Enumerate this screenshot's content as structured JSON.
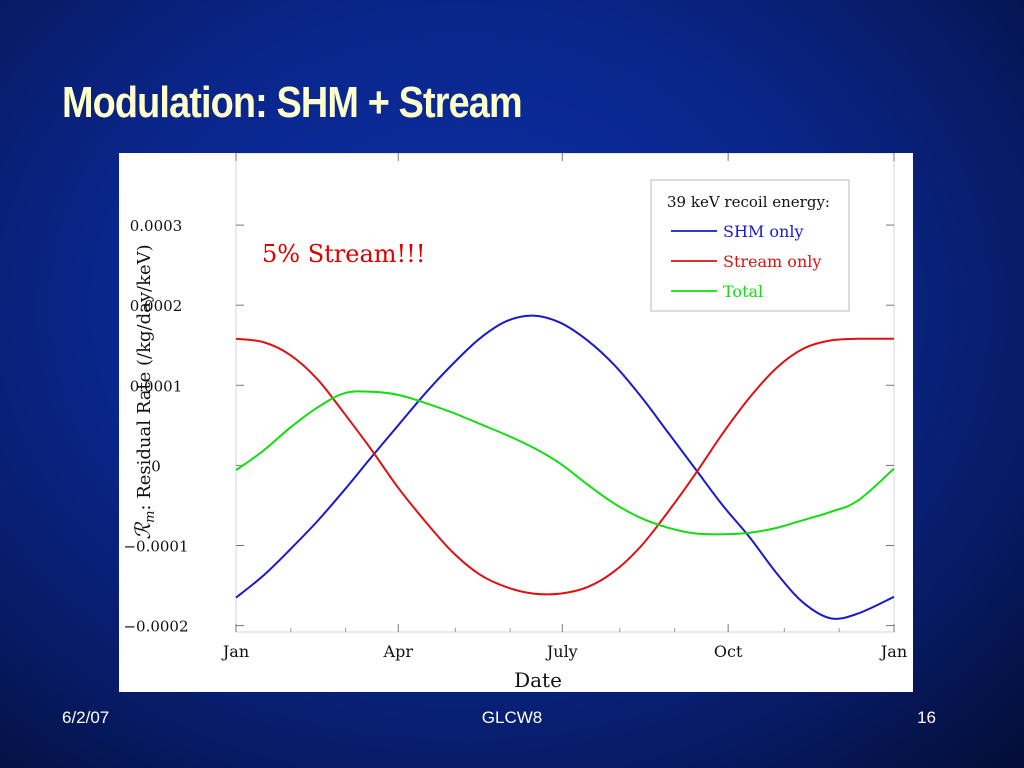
{
  "slide": {
    "title": "Modulation: SHM + Stream",
    "footer_date": "6/2/07",
    "footer_center": "GLCW8",
    "footer_page": "16"
  },
  "chart_data": {
    "type": "line",
    "xlabel": "Date",
    "ylabel_symbol": "ℛ",
    "ylabel_sub": "m",
    "ylabel_text": ": Residual Rate (/kg/day/keV)",
    "x_ticks": [
      "Jan",
      "Apr",
      "July",
      "Oct",
      "Jan"
    ],
    "x_tick_days": [
      0,
      90,
      181,
      273,
      365
    ],
    "xlim": [
      0,
      365
    ],
    "y_ticks": [
      {
        "value": 0.0003,
        "label": "0.0003"
      },
      {
        "value": 0.0002,
        "label": "0.0002"
      },
      {
        "value": 0.0001,
        "label": "0.0001"
      },
      {
        "value": 0,
        "label": "0"
      },
      {
        "value": -0.0001,
        "label": "−0.0001"
      },
      {
        "value": -0.0002,
        "label": "−0.0002"
      }
    ],
    "ylim": [
      -0.000208,
      0.00039
    ],
    "annotation": {
      "text": "5% Stream!!!",
      "color": "#dd0000"
    },
    "legend": {
      "title": "39 keV recoil energy:",
      "placement": "top-right"
    },
    "grid": false,
    "series": [
      {
        "name": "SHM only",
        "color": "#1a1acc",
        "x": [
          0,
          15,
          30,
          45,
          60,
          75,
          90,
          105,
          120,
          135,
          150,
          165,
          180,
          195,
          210,
          225,
          240,
          255,
          270,
          285,
          300,
          315,
          330,
          345,
          365
        ],
        "y": [
          -0.000165,
          -0.000138,
          -0.000105,
          -7e-05,
          -3.1e-05,
          1e-05,
          5e-05,
          9e-05,
          0.000126,
          0.000158,
          0.00018,
          0.000187,
          0.000178,
          0.000156,
          0.000125,
          8.5e-05,
          4e-05,
          -5e-06,
          -5e-05,
          -9e-05,
          -0.000135,
          -0.000172,
          -0.000191,
          -0.000185,
          -0.000164
        ]
      },
      {
        "name": "Stream only",
        "color": "#dd1111",
        "x": [
          0,
          15,
          30,
          45,
          60,
          75,
          90,
          105,
          120,
          135,
          150,
          165,
          180,
          195,
          210,
          225,
          240,
          255,
          270,
          285,
          300,
          315,
          330,
          345,
          365
        ],
        "y": [
          0.000158,
          0.000154,
          0.000138,
          0.000108,
          6.5e-05,
          2e-05,
          -2.8e-05,
          -7e-05,
          -0.000108,
          -0.000136,
          -0.000152,
          -0.00016,
          -0.00016,
          -0.000152,
          -0.000132,
          -0.0001,
          -5.7e-05,
          -1e-05,
          4e-05,
          8.5e-05,
          0.000122,
          0.000146,
          0.000156,
          0.000158,
          0.000158
        ]
      },
      {
        "name": "Total",
        "color": "#11dd11",
        "x": [
          0,
          15,
          30,
          45,
          60,
          75,
          90,
          105,
          120,
          135,
          150,
          165,
          180,
          195,
          210,
          225,
          240,
          255,
          270,
          285,
          300,
          315,
          330,
          345,
          365
        ],
        "y": [
          -6e-06,
          1.8e-05,
          4.7e-05,
          7.2e-05,
          9e-05,
          9.2e-05,
          8.8e-05,
          7.8e-05,
          6.6e-05,
          5.2e-05,
          3.8e-05,
          2.2e-05,
          2e-06,
          -2.4e-05,
          -4.8e-05,
          -6.6e-05,
          -7.8e-05,
          -8.5e-05,
          -8.6e-05,
          -8.4e-05,
          -7.8e-05,
          -6.8e-05,
          -5.8e-05,
          -4.4e-05,
          -4e-06
        ]
      }
    ]
  }
}
